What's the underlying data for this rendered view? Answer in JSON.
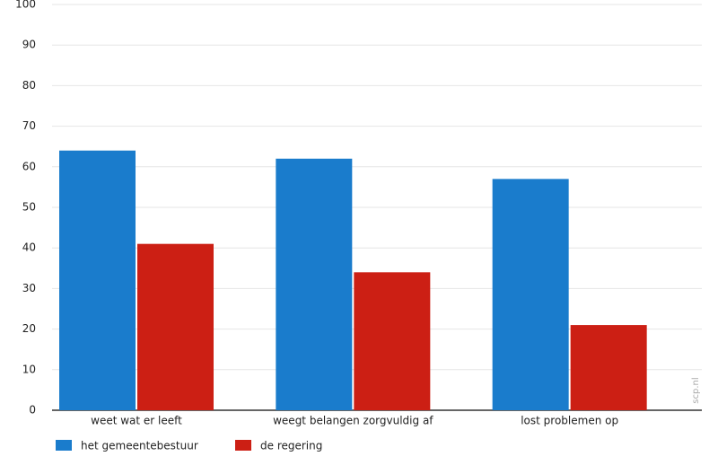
{
  "chart_data": {
    "type": "bar",
    "categories": [
      "weet wat er leeft",
      "weegt belangen zorgvuldig af",
      "lost problemen op"
    ],
    "series": [
      {
        "name": "het gemeentebestuur",
        "color": "#1a7ccc",
        "values": [
          64,
          62,
          57
        ]
      },
      {
        "name": "de regering",
        "color": "#cc1f14",
        "values": [
          41,
          34,
          21
        ]
      }
    ],
    "ylim": [
      0,
      100
    ],
    "yticks": [
      0,
      10,
      20,
      30,
      40,
      50,
      60,
      70,
      80,
      90,
      100
    ],
    "grid": true,
    "legend": "bottom-left",
    "source": "scp.nl"
  }
}
